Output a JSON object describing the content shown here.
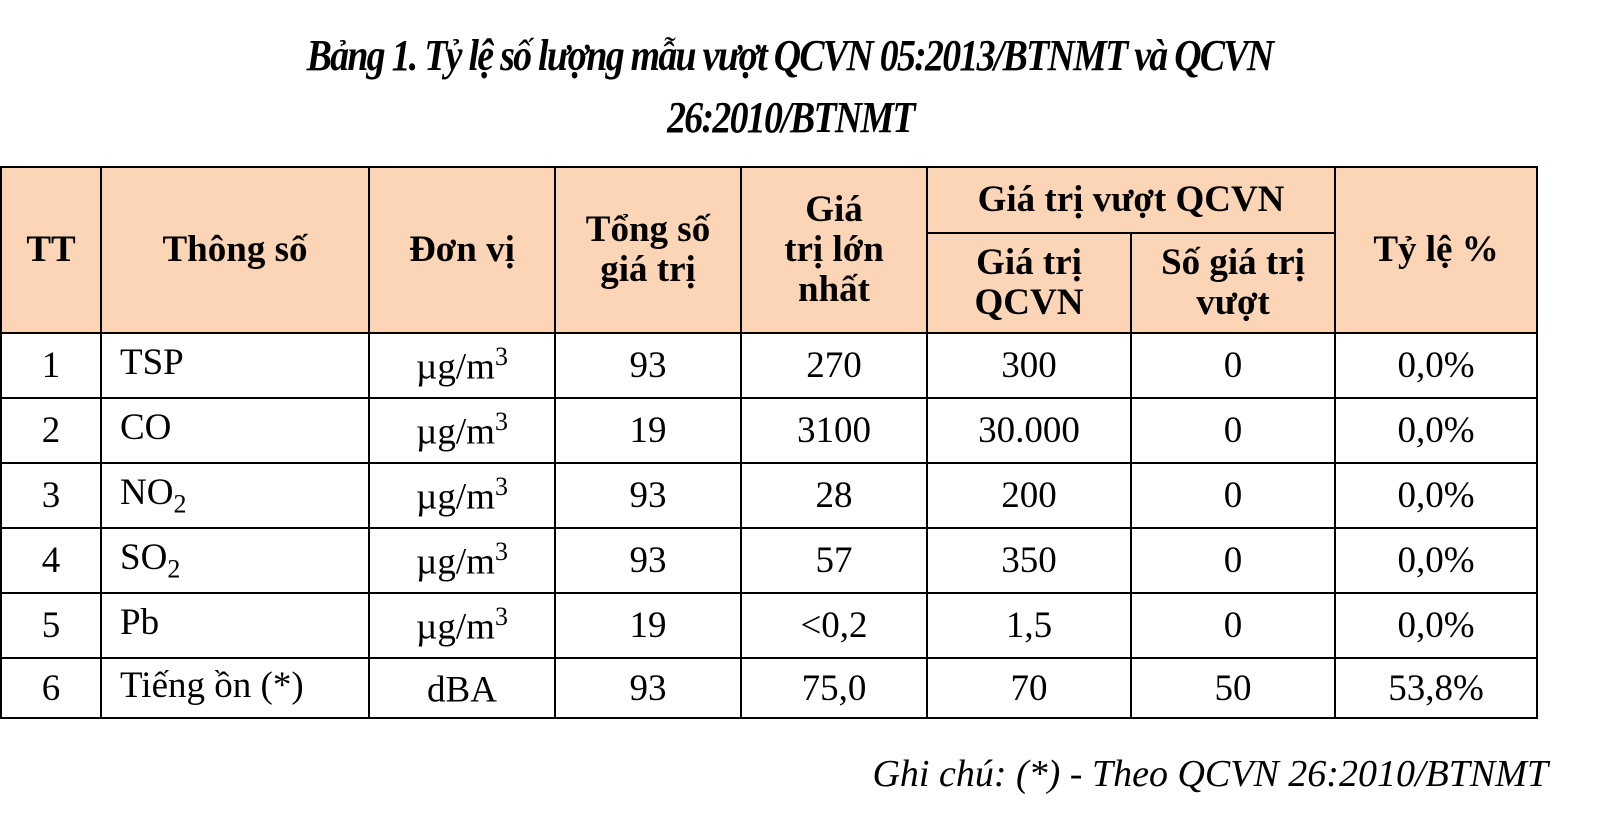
{
  "title": {
    "line1": "Bảng 1. Tỷ lệ số lượng mẫu vượt QCVN 05:2013/BTNMT và QCVN",
    "line2": "26:2010/BTNMT"
  },
  "table": {
    "headers": {
      "tt": "TT",
      "param": "Thông số",
      "unit": "Đơn vị",
      "total": "Tổng số giá trị",
      "max": "Giá trị lớn nhất",
      "exceed_group": "Giá trị vượt QCVN",
      "qcvn_value": "Giá trị QCVN",
      "exceed_count": "Số giá trị vượt",
      "ratio": "Tỷ lệ %"
    },
    "rows": [
      {
        "tt": "1",
        "param": "TSP",
        "sub": "",
        "unit": "µg/m",
        "sup": "3",
        "total": "93",
        "max": "270",
        "qcvn": "300",
        "exceed": "0",
        "ratio": "0,0%"
      },
      {
        "tt": "2",
        "param": "CO",
        "sub": "",
        "unit": "µg/m",
        "sup": "3",
        "total": "19",
        "max": "3100",
        "qcvn": "30.000",
        "exceed": "0",
        "ratio": "0,0%"
      },
      {
        "tt": "3",
        "param": "NO",
        "sub": "2",
        "unit": "µg/m",
        "sup": "3",
        "total": "93",
        "max": "28",
        "qcvn": "200",
        "exceed": "0",
        "ratio": "0,0%"
      },
      {
        "tt": "4",
        "param": "SO",
        "sub": "2",
        "unit": "µg/m",
        "sup": "3",
        "total": "93",
        "max": "57",
        "qcvn": "350",
        "exceed": "0",
        "ratio": "0,0%"
      },
      {
        "tt": "5",
        "param": "Pb",
        "sub": "",
        "unit": "µg/m",
        "sup": "3",
        "total": "19",
        "max": "<0,2",
        "qcvn": "1,5",
        "exceed": "0",
        "ratio": "0,0%"
      },
      {
        "tt": "6",
        "param": "Tiếng ồn (*)",
        "sub": "",
        "unit": "dBA",
        "sup": "",
        "total": "93",
        "max": "75,0",
        "qcvn": "70",
        "exceed": "50",
        "ratio": "53,8%"
      }
    ]
  },
  "note": "Ghi chú: (*) - Theo QCVN 26:2010/BTNMT",
  "colors": {
    "header_bg": "#fbd5b5"
  }
}
